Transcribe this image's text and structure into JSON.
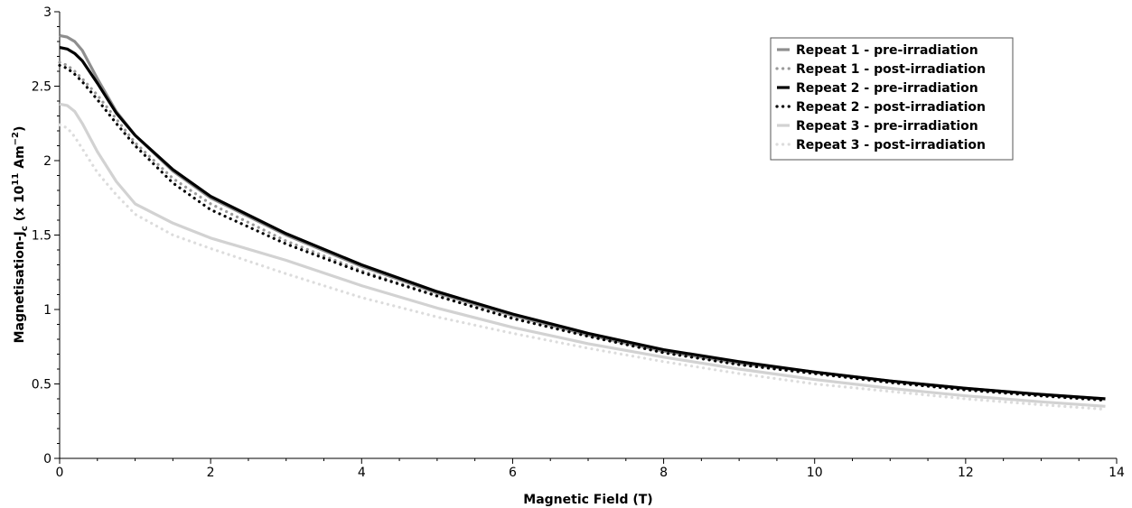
{
  "chart_data": {
    "type": "line",
    "xlabel": "Magnetic Field (T)",
    "ylabel": {
      "prefix": "Magnetisation-J",
      "sub": "c",
      "mid": " (x 10",
      "sup": "11",
      "unit": " Am",
      "unit_sup": "−2",
      "suffix": ")"
    },
    "xlim": [
      0,
      14
    ],
    "ylim": [
      0,
      3
    ],
    "xticks": [
      "0",
      "2",
      "4",
      "6",
      "8",
      "10",
      "12",
      "14"
    ],
    "yticks": [
      "0",
      "0.5",
      "1",
      "1.5",
      "2",
      "2.5",
      "3"
    ],
    "grid": false,
    "legend_position": "top-right",
    "series": [
      {
        "name": "Repeat 1 - pre-irradiation",
        "color": "#8e8e8e",
        "style": "solid",
        "x": [
          0,
          0.1,
          0.2,
          0.3,
          0.5,
          0.75,
          1,
          1.5,
          2,
          3,
          4,
          5,
          6,
          7,
          8,
          9,
          10,
          11,
          12,
          13,
          13.85
        ],
        "y": [
          2.84,
          2.83,
          2.8,
          2.74,
          2.55,
          2.33,
          2.17,
          1.93,
          1.75,
          1.5,
          1.29,
          1.11,
          0.96,
          0.83,
          0.72,
          0.64,
          0.58,
          0.52,
          0.47,
          0.43,
          0.4
        ]
      },
      {
        "name": "Repeat 1 - post-irradiation",
        "color": "#9a9a9a",
        "style": "dotted",
        "x": [
          0,
          0.1,
          0.2,
          0.3,
          0.5,
          0.75,
          1,
          1.5,
          2,
          3,
          4,
          5,
          6,
          7,
          8,
          9,
          10,
          11,
          12,
          13,
          13.85
        ],
        "y": [
          2.66,
          2.64,
          2.6,
          2.55,
          2.44,
          2.28,
          2.12,
          1.88,
          1.71,
          1.46,
          1.26,
          1.09,
          0.94,
          0.82,
          0.71,
          0.63,
          0.57,
          0.51,
          0.46,
          0.42,
          0.39
        ]
      },
      {
        "name": "Repeat 2 - pre-irradiation",
        "color": "#000000",
        "style": "solid",
        "x": [
          0,
          0.1,
          0.2,
          0.3,
          0.5,
          0.75,
          1,
          1.5,
          2,
          3,
          4,
          5,
          6,
          7,
          8,
          9,
          10,
          11,
          12,
          13,
          13.85
        ],
        "y": [
          2.76,
          2.75,
          2.72,
          2.67,
          2.52,
          2.32,
          2.17,
          1.94,
          1.76,
          1.51,
          1.3,
          1.12,
          0.97,
          0.84,
          0.73,
          0.65,
          0.58,
          0.52,
          0.47,
          0.43,
          0.4
        ]
      },
      {
        "name": "Repeat 2 - post-irradiation",
        "color": "#000000",
        "style": "dotted",
        "x": [
          0,
          0.1,
          0.2,
          0.3,
          0.5,
          0.75,
          1,
          1.5,
          2,
          3,
          4,
          5,
          6,
          7,
          8,
          9,
          10,
          11,
          12,
          13,
          13.85
        ],
        "y": [
          2.64,
          2.62,
          2.58,
          2.53,
          2.41,
          2.25,
          2.1,
          1.85,
          1.67,
          1.44,
          1.25,
          1.09,
          0.94,
          0.82,
          0.71,
          0.63,
          0.57,
          0.51,
          0.46,
          0.42,
          0.39
        ]
      },
      {
        "name": "Repeat 3 - pre-irradiation",
        "color": "#d2d2d2",
        "style": "solid",
        "x": [
          0,
          0.1,
          0.2,
          0.3,
          0.5,
          0.75,
          1,
          1.5,
          2,
          3,
          4,
          5,
          6,
          7,
          8,
          9,
          10,
          11,
          12,
          13,
          13.85
        ],
        "y": [
          2.38,
          2.37,
          2.33,
          2.25,
          2.06,
          1.86,
          1.71,
          1.58,
          1.48,
          1.33,
          1.16,
          1.01,
          0.88,
          0.77,
          0.68,
          0.6,
          0.53,
          0.47,
          0.42,
          0.38,
          0.35
        ]
      },
      {
        "name": "Repeat 3 - post-irradiation",
        "color": "#dcdcdc",
        "style": "dotted",
        "x": [
          0,
          0.1,
          0.2,
          0.3,
          0.5,
          0.75,
          1,
          1.5,
          2,
          3,
          4,
          5,
          6,
          7,
          8,
          9,
          10,
          11,
          12,
          13,
          13.85
        ],
        "y": [
          2.24,
          2.22,
          2.16,
          2.08,
          1.92,
          1.77,
          1.64,
          1.5,
          1.41,
          1.24,
          1.08,
          0.95,
          0.84,
          0.74,
          0.65,
          0.57,
          0.5,
          0.45,
          0.4,
          0.36,
          0.33
        ]
      }
    ]
  }
}
